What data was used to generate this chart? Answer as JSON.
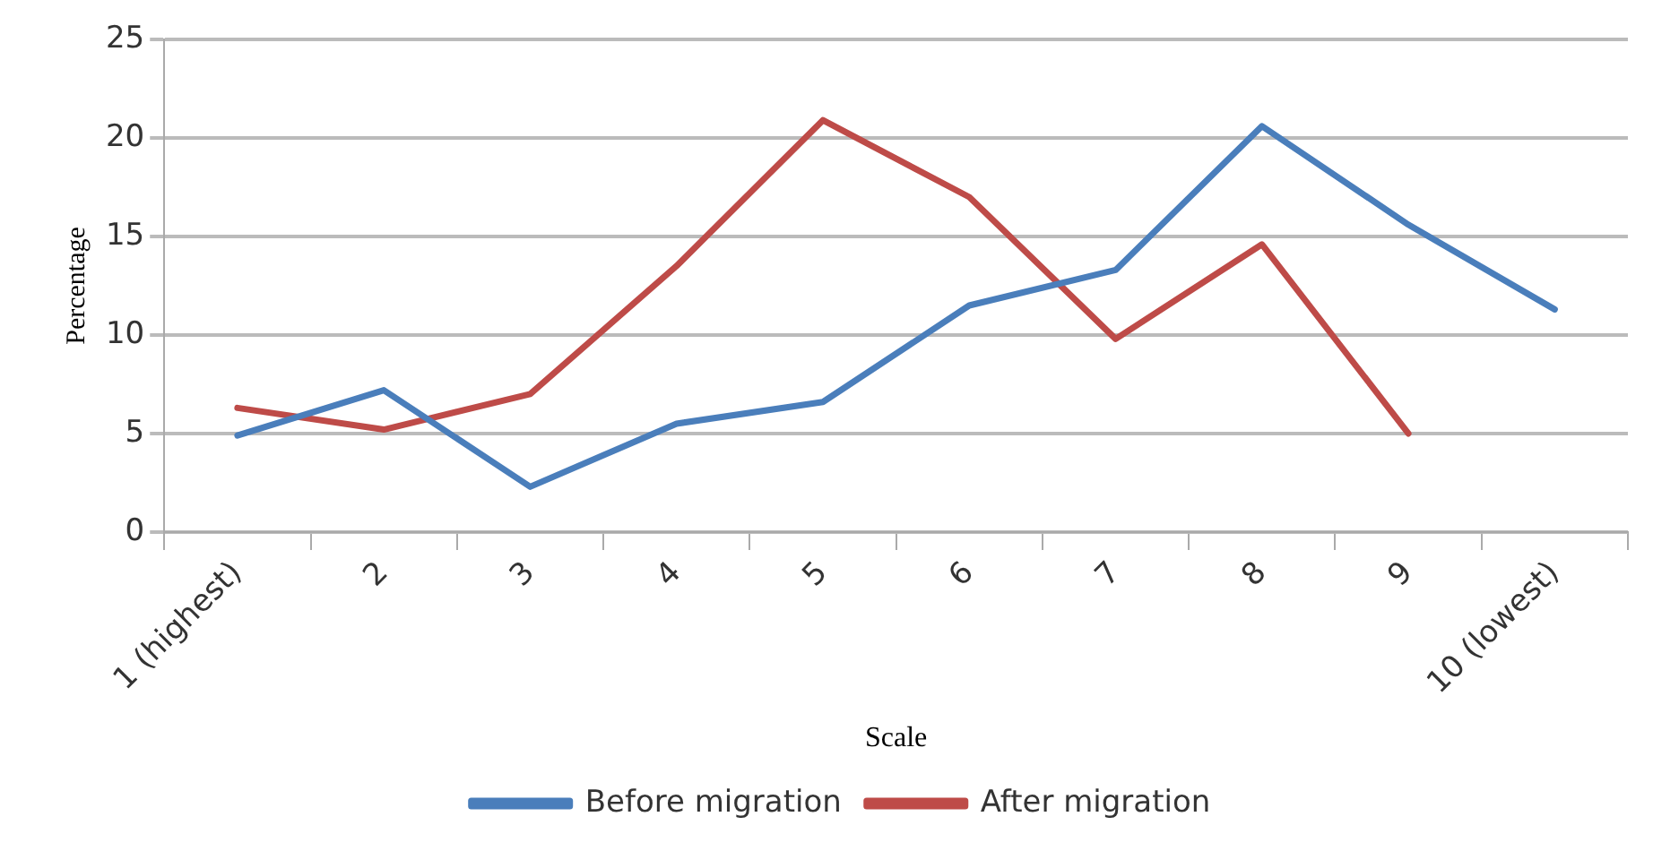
{
  "chart_data": {
    "type": "line",
    "xlabel": "Scale",
    "ylabel": "Percentage",
    "categories": [
      "1 (highest)",
      "2",
      "3",
      "4",
      "5",
      "6",
      "7",
      "8",
      "9",
      "10 (lowest)"
    ],
    "series": [
      {
        "name": "Before migration",
        "color": "#4a7ebb",
        "values": [
          4.9,
          7.2,
          2.3,
          5.5,
          6.6,
          11.5,
          13.3,
          20.6,
          15.6,
          11.3
        ]
      },
      {
        "name": "After migration",
        "color": "#be4b48",
        "values": [
          6.3,
          5.2,
          7.0,
          13.5,
          20.9,
          17.0,
          9.8,
          14.6,
          5.0,
          null
        ]
      }
    ],
    "ylim": [
      0,
      25
    ],
    "yticks": [
      0,
      5,
      10,
      15,
      20,
      25
    ],
    "grid": "y",
    "legend": "bottom",
    "marker": "none",
    "line_style": "solid"
  }
}
